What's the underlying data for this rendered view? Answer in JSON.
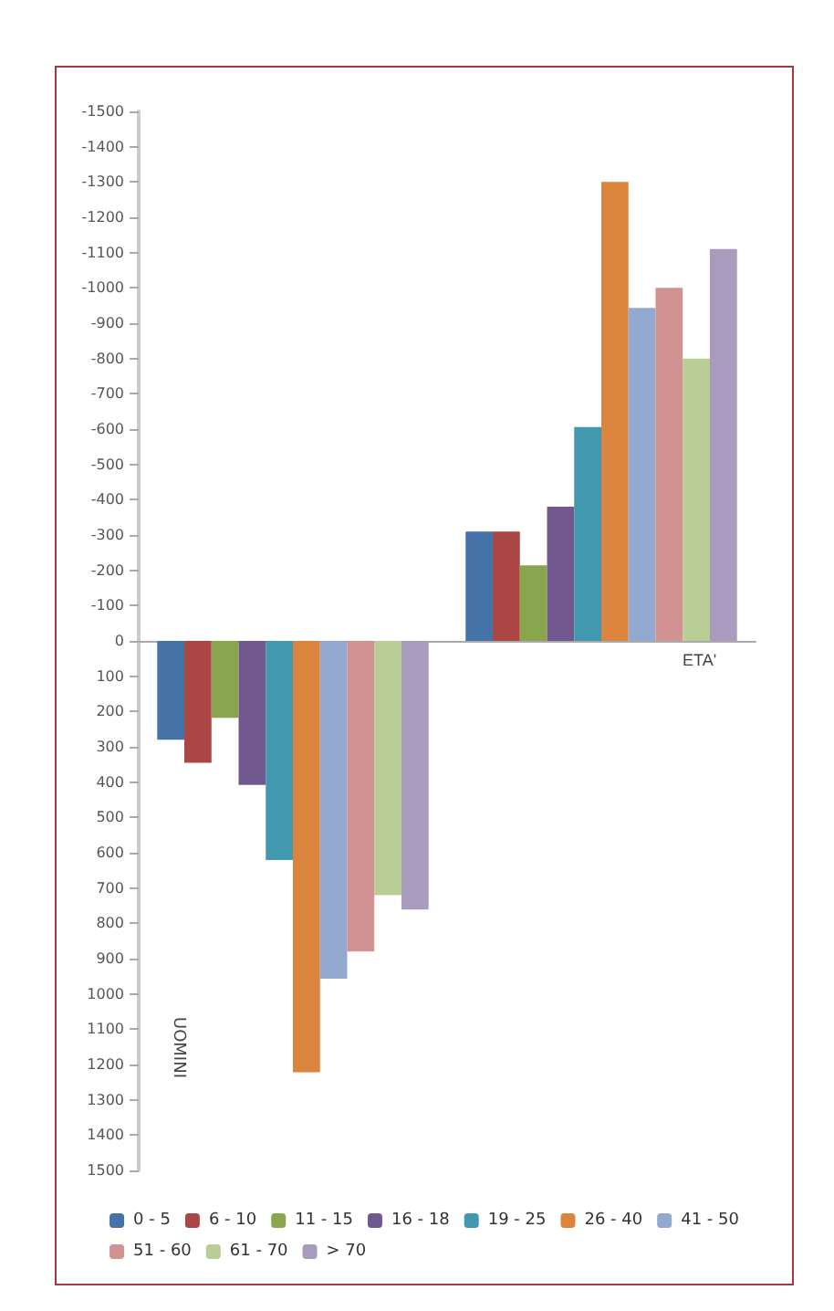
{
  "chart_data": {
    "type": "bar",
    "categories": [
      null,
      null
    ],
    "xlabel": "ETA'",
    "annotations": [
      "UOMINI"
    ],
    "ylim": [
      1500,
      -1500
    ],
    "yticks": [
      -1500,
      -1400,
      -1300,
      -1200,
      -1100,
      -1000,
      -900,
      -800,
      -700,
      -600,
      -500,
      -400,
      -300,
      -200,
      -100,
      0,
      100,
      200,
      300,
      400,
      500,
      600,
      700,
      800,
      900,
      1000,
      1100,
      1200,
      1300,
      1400,
      1500
    ],
    "legend": "bottom",
    "series": [
      {
        "name": "0 - 5",
        "color": "#4572a7",
        "values": [
          280,
          -310
        ]
      },
      {
        "name": "6 - 10",
        "color": "#aa4643",
        "values": [
          345,
          -310
        ]
      },
      {
        "name": "11 - 15",
        "color": "#89a54e",
        "values": [
          218,
          -214
        ]
      },
      {
        "name": "16 - 18",
        "color": "#71588f",
        "values": [
          408,
          -380
        ]
      },
      {
        "name": "19 - 25",
        "color": "#4198af",
        "values": [
          621,
          -606
        ]
      },
      {
        "name": "26 - 40",
        "color": "#db843d",
        "values": [
          1222,
          -1300
        ]
      },
      {
        "name": "41 - 50",
        "color": "#93a9cf",
        "values": [
          957,
          -943
        ]
      },
      {
        "name": "51 - 60",
        "color": "#d19392",
        "values": [
          880,
          -1000
        ]
      },
      {
        "name": "61 - 70",
        "color": "#b9cd96",
        "values": [
          720,
          -800
        ]
      },
      {
        "name": "> 70",
        "color": "#a99bbd",
        "values": [
          761,
          -1110
        ]
      }
    ]
  }
}
